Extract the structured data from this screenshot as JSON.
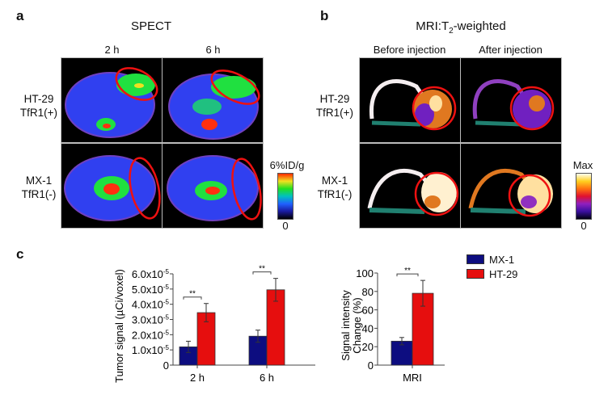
{
  "panel_a": {
    "letter": "a",
    "title": "SPECT",
    "columns": [
      "2 h",
      "6 h"
    ],
    "rows": [
      {
        "line1": "HT-29",
        "line2": "TfR1(+)"
      },
      {
        "line1": "MX-1",
        "line2": "TfR1(-)"
      }
    ],
    "colorbar": {
      "max_label": "6%ID/g",
      "min_label": "0",
      "colors": [
        "#000000",
        "#1a1aa0",
        "#2060ff",
        "#00c0c0",
        "#20e020",
        "#f0e020",
        "#ff2a00"
      ]
    }
  },
  "panel_b": {
    "letter": "b",
    "title_main": "MRI:T",
    "title_sub": "2",
    "title_suffix": "-weighted",
    "columns": [
      "Before injection",
      "After injection"
    ],
    "rows": [
      {
        "line1": "HT-29",
        "line2": "TfR1(+)"
      },
      {
        "line1": "MX-1",
        "line2": "TfR1(-)"
      }
    ],
    "colorbar": {
      "max_label": "Max",
      "min_label": "0",
      "colors": [
        "#000010",
        "#3a10a0",
        "#9020c0",
        "#e01030",
        "#ff7010",
        "#ffd020",
        "#fffff0"
      ]
    }
  },
  "panel_c": {
    "letter": "c"
  },
  "legend": [
    {
      "name": "MX-1",
      "color": "#0d0d80"
    },
    {
      "name": "HT-29",
      "color": "#e60e0e"
    }
  ],
  "chart_data": [
    {
      "type": "bar",
      "title": "",
      "xlabel": "",
      "ylabel": "Tumor signal (µCi/voxel)",
      "categories": [
        "2 h",
        "6 h"
      ],
      "ylim": [
        0,
        6e-05
      ],
      "yticks": [
        0,
        1e-05,
        2e-05,
        3e-05,
        4e-05,
        5e-05,
        6e-05
      ],
      "ytick_labels": [
        {
          "base": "0",
          "exp": ""
        },
        {
          "base": "1.0x10",
          "exp": "-5"
        },
        {
          "base": "2.0x10",
          "exp": "-5"
        },
        {
          "base": "3.0x10",
          "exp": "-5"
        },
        {
          "base": "4.0x10",
          "exp": "-5"
        },
        {
          "base": "5.0x10",
          "exp": "-5"
        },
        {
          "base": "6.0x10",
          "exp": "-5"
        }
      ],
      "series": [
        {
          "name": "MX-1",
          "values": [
            1.2e-05,
            1.9e-05
          ],
          "errors": [
            3.7e-06,
            4e-06
          ]
        },
        {
          "name": "HT-29",
          "values": [
            3.45e-05,
            4.95e-05
          ],
          "errors": [
            6e-06,
            7.5e-06
          ]
        }
      ],
      "significance": [
        {
          "category": "2 h",
          "label": "**"
        },
        {
          "category": "6 h",
          "label": "**"
        }
      ],
      "grid": false
    },
    {
      "type": "bar",
      "title": "",
      "xlabel": "",
      "ylabel_line1": "Signal intensity",
      "ylabel_line2": "Change (%)",
      "categories": [
        "MRI"
      ],
      "ylim": [
        0,
        100
      ],
      "yticks": [
        0,
        20,
        40,
        60,
        80,
        100
      ],
      "series": [
        {
          "name": "MX-1",
          "values": [
            26
          ],
          "errors": [
            4
          ]
        },
        {
          "name": "HT-29",
          "values": [
            78
          ],
          "errors": [
            14
          ]
        }
      ],
      "significance": [
        {
          "category": "MRI",
          "label": "**"
        }
      ],
      "legend_position": "top-right",
      "grid": false
    }
  ]
}
